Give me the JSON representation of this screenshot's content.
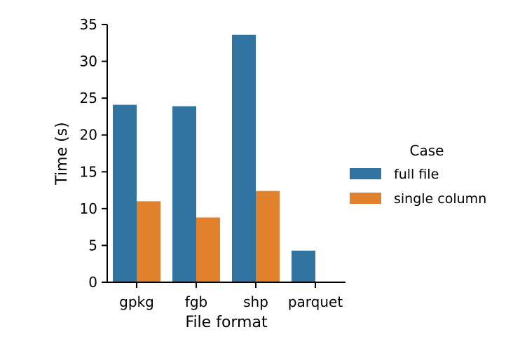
{
  "chart_data": {
    "type": "bar",
    "xlabel": "File format",
    "ylabel": "Time (s)",
    "categories": [
      "gpkg",
      "fgb",
      "shp",
      "parquet"
    ],
    "ylim": [
      0,
      35
    ],
    "yticks": [
      0,
      5,
      10,
      15,
      20,
      25,
      30,
      35
    ],
    "grid": false,
    "legend": {
      "title": "Case",
      "placement": "right"
    },
    "series": [
      {
        "name": "full file",
        "color": "#3274a1",
        "values": [
          24.1,
          23.9,
          33.6,
          4.3
        ]
      },
      {
        "name": "single column",
        "color": "#e1812c",
        "values": [
          11.0,
          8.8,
          12.4,
          0
        ]
      }
    ]
  }
}
